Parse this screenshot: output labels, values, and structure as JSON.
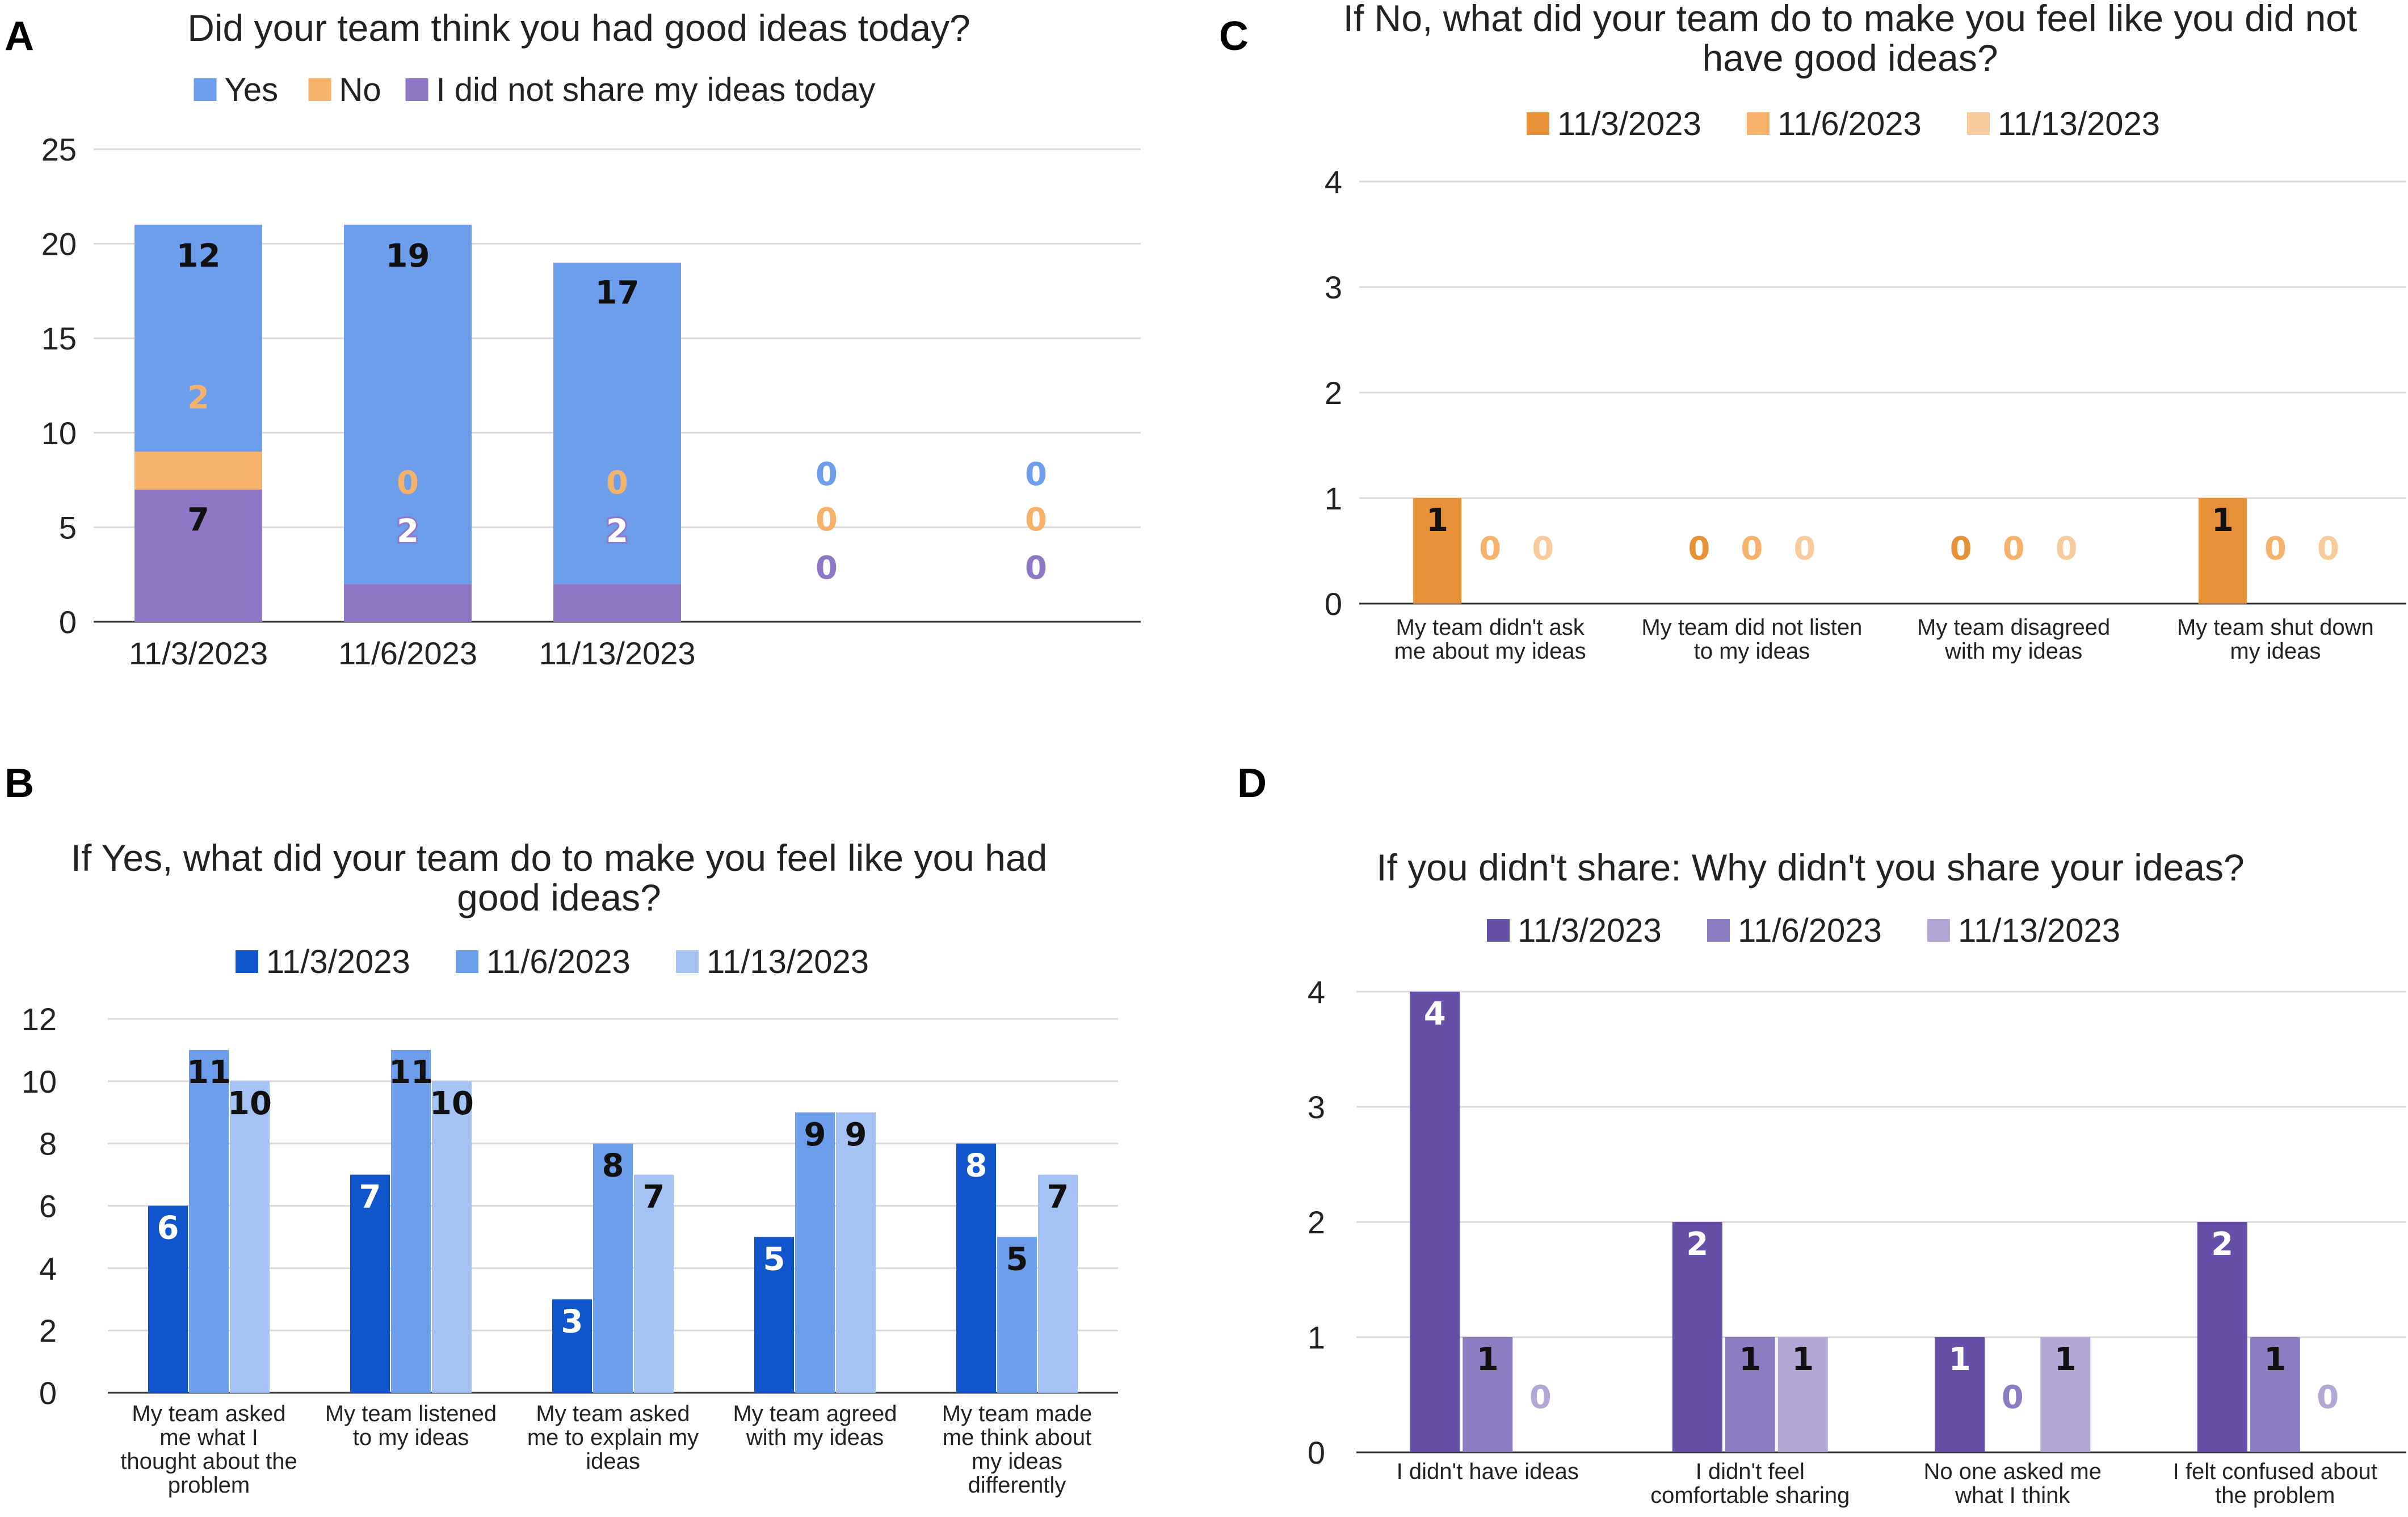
{
  "panels": {
    "A": {
      "letter": "A"
    },
    "B": {
      "letter": "B"
    },
    "C": {
      "letter": "C"
    },
    "D": {
      "letter": "D"
    }
  },
  "chart_data": [
    {
      "id": "A",
      "type": "bar",
      "stacked": true,
      "title": "Did your team think you had good ideas today?",
      "categories": [
        "11/3/2023",
        "11/6/2023",
        "11/13/2023",
        "",
        ""
      ],
      "series": [
        {
          "name": "I did not share my ideas today",
          "color": "#8f77c6",
          "values": [
            7,
            2,
            2,
            0,
            0
          ]
        },
        {
          "name": "No",
          "color": "#f6b26b",
          "values": [
            2,
            0,
            0,
            0,
            0
          ]
        },
        {
          "name": "Yes",
          "color": "#6d9eeb",
          "values": [
            12,
            19,
            17,
            0,
            0
          ]
        }
      ],
      "legend_order": [
        "Yes",
        "No",
        "I did not share my ideas today"
      ],
      "yticks": [
        0,
        5,
        10,
        15,
        20,
        25
      ],
      "ylim": [
        0,
        25
      ],
      "xlabel": "",
      "ylabel": ""
    },
    {
      "id": "B",
      "type": "bar",
      "title": [
        "If Yes, what did your team do to make you feel like you had",
        "good ideas?"
      ],
      "categories": [
        [
          "My team asked",
          "me what I",
          "thought about the",
          "problem"
        ],
        [
          "My team listened",
          "to my ideas"
        ],
        [
          "My team asked",
          "me to explain my",
          "ideas"
        ],
        [
          "My team agreed",
          "with my ideas"
        ],
        [
          "My team made",
          "me think about",
          "my ideas",
          "differently"
        ]
      ],
      "series": [
        {
          "name": "11/3/2023",
          "color": "#1155cc",
          "values": [
            6,
            7,
            3,
            5,
            8
          ]
        },
        {
          "name": "11/6/2023",
          "color": "#6d9eeb",
          "values": [
            11,
            11,
            8,
            9,
            5
          ]
        },
        {
          "name": "11/13/2023",
          "color": "#a4c2f4",
          "values": [
            10,
            10,
            7,
            9,
            7
          ]
        }
      ],
      "label_colors": [
        "#ffffff",
        "#111111",
        "#111111"
      ],
      "yticks": [
        0,
        2,
        4,
        6,
        8,
        10,
        12
      ],
      "ylim": [
        0,
        12
      ],
      "xlabel": "",
      "ylabel": ""
    },
    {
      "id": "C",
      "type": "bar",
      "title": [
        "If No, what did your team do to make you feel like you did not",
        "have good ideas?"
      ],
      "categories": [
        [
          "My team didn't ask",
          "me about my ideas"
        ],
        [
          "My team did not listen",
          "to my ideas"
        ],
        [
          "My team disagreed",
          "with my ideas"
        ],
        [
          "My team shut down",
          "my ideas"
        ]
      ],
      "series": [
        {
          "name": "11/3/2023",
          "color": "#e69138",
          "values": [
            1,
            0,
            0,
            1
          ]
        },
        {
          "name": "11/6/2023",
          "color": "#f6b26b",
          "values": [
            0,
            0,
            0,
            0
          ]
        },
        {
          "name": "11/13/2023",
          "color": "#f9cb9c",
          "values": [
            0,
            0,
            0,
            0
          ]
        }
      ],
      "label_colors": [
        "#111111",
        "#111111",
        "#111111"
      ],
      "yticks": [
        0,
        1,
        2,
        3,
        4
      ],
      "ylim": [
        0,
        4
      ],
      "xlabel": "",
      "ylabel": ""
    },
    {
      "id": "D",
      "type": "bar",
      "title": "If you didn't share: Why didn't you share your ideas?",
      "categories": [
        [
          "I didn't have ideas"
        ],
        [
          "I didn't feel",
          "comfortable sharing"
        ],
        [
          "No one asked me",
          "what I think"
        ],
        [
          "I felt confused about",
          "the problem"
        ]
      ],
      "series": [
        {
          "name": "11/3/2023",
          "color": "#674ea7",
          "values": [
            4,
            2,
            1,
            2
          ]
        },
        {
          "name": "11/6/2023",
          "color": "#8e7cc3",
          "values": [
            1,
            1,
            0,
            1
          ]
        },
        {
          "name": "11/13/2023",
          "color": "#b4a7d6",
          "values": [
            0,
            1,
            1,
            0
          ]
        }
      ],
      "label_colors": [
        "#ffffff",
        "#111111",
        "#111111"
      ],
      "yticks": [
        0,
        1,
        2,
        3,
        4
      ],
      "ylim": [
        0,
        4
      ],
      "xlabel": "",
      "ylabel": ""
    }
  ]
}
